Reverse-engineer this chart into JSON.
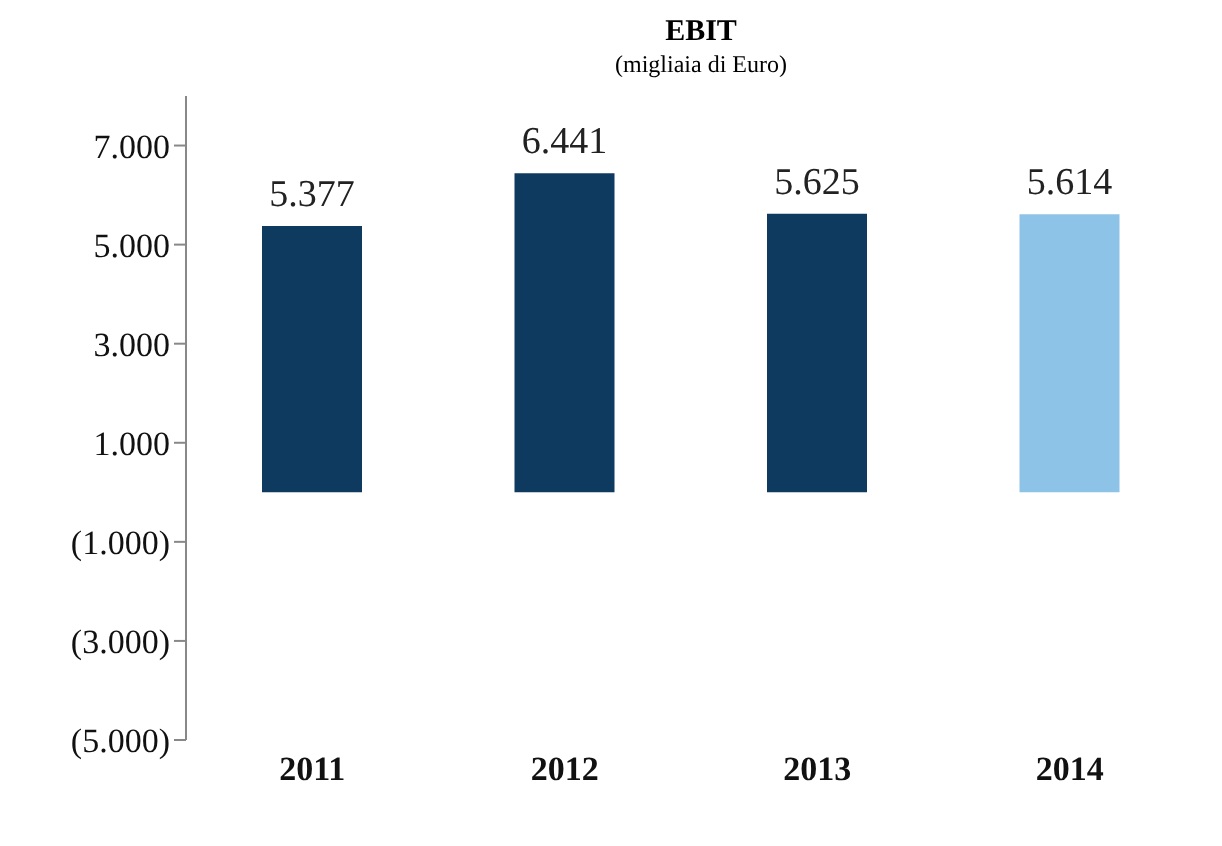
{
  "chart_data": {
    "type": "bar",
    "title": "EBIT",
    "subtitle": "(migliaia di Euro)",
    "categories": [
      "2011",
      "2012",
      "2013",
      "2014"
    ],
    "values": [
      5377,
      6441,
      5625,
      5614
    ],
    "colors": [
      "#0f3a5f",
      "#0f3a5f",
      "#0f3a5f",
      "#8ec3e8"
    ],
    "value_labels": [
      "5.377",
      "6.441",
      "5.625",
      "5.614"
    ],
    "ylim": [
      -5000,
      8000
    ],
    "yticks": [
      {
        "value": -5000,
        "label": "(5.000)"
      },
      {
        "value": -3000,
        "label": "(3.000)"
      },
      {
        "value": -1000,
        "label": "(1.000)"
      },
      {
        "value": 1000,
        "label": "1.000"
      },
      {
        "value": 3000,
        "label": "3.000"
      },
      {
        "value": 5000,
        "label": "5.000"
      },
      {
        "value": 7000,
        "label": "7.000"
      }
    ],
    "grid": false,
    "legend": false
  }
}
